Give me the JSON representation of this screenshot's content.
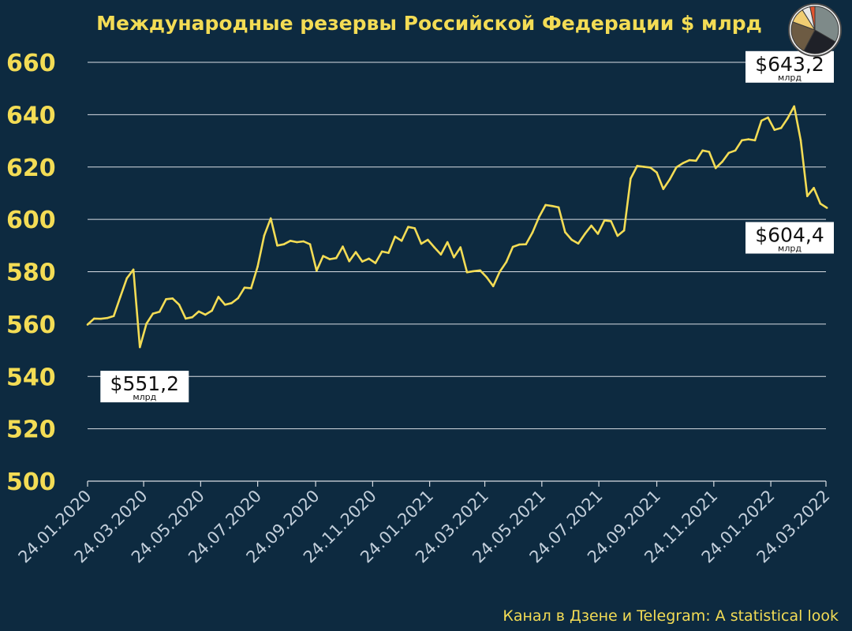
{
  "colors": {
    "background": "#0d2a40",
    "accent": "#f3dc55",
    "grid": "#d9dee4",
    "x_tick_text": "#c3cfdb",
    "label_box": "#ffffff"
  },
  "logo": {
    "icon": "pie-chart-logo-icon"
  },
  "footer": {
    "text": "Канал в Дзене и Telegram: A statistical look"
  },
  "chart_data": {
    "type": "line",
    "title": "Международные резервы Российской Федерации $ млрд",
    "xlabel": "",
    "ylabel": "",
    "ylim": [
      500,
      660
    ],
    "y_ticks": [
      500,
      520,
      540,
      560,
      580,
      600,
      620,
      640,
      660
    ],
    "grid": true,
    "x_range": [
      "24.01.2020",
      "24.03.2022"
    ],
    "x_tick_labels": [
      "24.01.2020",
      "24.03.2020",
      "24.05.2020",
      "24.07.2020",
      "24.09.2020",
      "24.11.2020",
      "24.01.2021",
      "24.03.2021",
      "24.05.2021",
      "24.07.2021",
      "24.09.2021",
      "24.11.2021",
      "24.01.2022",
      "24.03.2022"
    ],
    "series": [
      {
        "values": [
          [
            "24.01.2020",
            559.8
          ],
          [
            "31.01.2020",
            562.1
          ],
          [
            "07.02.2020",
            562.0
          ],
          [
            "14.02.2020",
            562.3
          ],
          [
            "21.02.2020",
            563.1
          ],
          [
            "28.02.2020",
            570.4
          ],
          [
            "06.03.2020",
            577.5
          ],
          [
            "13.03.2020",
            580.8
          ],
          [
            "20.03.2020",
            551.2
          ],
          [
            "27.03.2020",
            560.1
          ],
          [
            "03.04.2020",
            564.0
          ],
          [
            "10.04.2020",
            564.7
          ],
          [
            "17.04.2020",
            569.5
          ],
          [
            "24.04.2020",
            569.8
          ],
          [
            "01.05.2020",
            567.4
          ],
          [
            "08.05.2020",
            562.1
          ],
          [
            "15.05.2020",
            562.6
          ],
          [
            "22.05.2020",
            564.8
          ],
          [
            "29.05.2020",
            563.6
          ],
          [
            "05.06.2020",
            565.1
          ],
          [
            "12.06.2020",
            570.4
          ],
          [
            "19.06.2020",
            567.4
          ],
          [
            "26.06.2020",
            568.0
          ],
          [
            "03.07.2020",
            569.9
          ],
          [
            "10.07.2020",
            573.9
          ],
          [
            "17.07.2020",
            573.7
          ],
          [
            "24.07.2020",
            582.0
          ],
          [
            "31.07.2020",
            593.8
          ],
          [
            "07.08.2020",
            600.4
          ],
          [
            "14.08.2020",
            590.0
          ],
          [
            "21.08.2020",
            590.5
          ],
          [
            "28.08.2020",
            591.8
          ],
          [
            "04.09.2020",
            591.3
          ],
          [
            "11.09.2020",
            591.6
          ],
          [
            "18.09.2020",
            590.5
          ],
          [
            "25.09.2020",
            580.4
          ],
          [
            "02.10.2020",
            586.0
          ],
          [
            "09.10.2020",
            584.8
          ],
          [
            "16.10.2020",
            585.2
          ],
          [
            "23.10.2020",
            589.6
          ],
          [
            "30.10.2020",
            584.0
          ],
          [
            "06.11.2020",
            587.5
          ],
          [
            "13.11.2020",
            583.9
          ],
          [
            "20.11.2020",
            585.0
          ],
          [
            "27.11.2020",
            583.3
          ],
          [
            "04.12.2020",
            587.7
          ],
          [
            "11.12.2020",
            587.2
          ],
          [
            "18.12.2020",
            593.4
          ],
          [
            "25.12.2020",
            591.8
          ],
          [
            "01.01.2021",
            597.1
          ],
          [
            "08.01.2021",
            596.6
          ],
          [
            "15.01.2021",
            590.7
          ],
          [
            "22.01.2021",
            592.2
          ],
          [
            "29.01.2021",
            589.3
          ],
          [
            "05.02.2021",
            586.6
          ],
          [
            "12.02.2021",
            591.3
          ],
          [
            "19.02.2021",
            585.5
          ],
          [
            "26.02.2021",
            589.3
          ],
          [
            "05.03.2021",
            579.8
          ],
          [
            "12.03.2021",
            580.2
          ],
          [
            "19.03.2021",
            580.5
          ],
          [
            "26.03.2021",
            577.9
          ],
          [
            "02.04.2021",
            574.5
          ],
          [
            "09.04.2021",
            580.0
          ],
          [
            "16.04.2021",
            583.7
          ],
          [
            "23.04.2021",
            589.5
          ],
          [
            "30.04.2021",
            590.4
          ],
          [
            "07.05.2021",
            590.5
          ],
          [
            "14.05.2021",
            595.0
          ],
          [
            "21.05.2021",
            600.9
          ],
          [
            "28.05.2021",
            605.5
          ],
          [
            "04.06.2021",
            605.1
          ],
          [
            "11.06.2021",
            604.6
          ],
          [
            "18.06.2021",
            595.1
          ],
          [
            "25.06.2021",
            592.2
          ],
          [
            "02.07.2021",
            590.8
          ],
          [
            "09.07.2021",
            594.4
          ],
          [
            "16.07.2021",
            597.6
          ],
          [
            "23.07.2021",
            594.5
          ],
          [
            "30.07.2021",
            599.6
          ],
          [
            "06.08.2021",
            599.3
          ],
          [
            "13.08.2021",
            593.7
          ],
          [
            "20.08.2021",
            595.8
          ],
          [
            "27.08.2021",
            615.6
          ],
          [
            "03.09.2021",
            620.4
          ],
          [
            "10.09.2021",
            620.1
          ],
          [
            "17.09.2021",
            619.8
          ],
          [
            "24.09.2021",
            617.9
          ],
          [
            "01.10.2021",
            611.6
          ],
          [
            "08.10.2021",
            615.3
          ],
          [
            "15.10.2021",
            619.9
          ],
          [
            "22.10.2021",
            621.5
          ],
          [
            "29.10.2021",
            622.6
          ],
          [
            "05.11.2021",
            622.4
          ],
          [
            "12.11.2021",
            626.3
          ],
          [
            "19.11.2021",
            625.8
          ],
          [
            "26.11.2021",
            619.6
          ],
          [
            "03.12.2021",
            622.0
          ],
          [
            "10.12.2021",
            625.4
          ],
          [
            "17.12.2021",
            626.3
          ],
          [
            "24.12.2021",
            630.2
          ],
          [
            "31.12.2021",
            630.6
          ],
          [
            "07.01.2022",
            630.2
          ],
          [
            "14.01.2022",
            637.7
          ],
          [
            "21.01.2022",
            638.9
          ],
          [
            "28.01.2022",
            634.2
          ],
          [
            "04.02.2022",
            634.9
          ],
          [
            "11.02.2022",
            638.6
          ],
          [
            "18.02.2022",
            643.2
          ],
          [
            "25.02.2022",
            630.2
          ],
          [
            "04.03.2022",
            608.9
          ],
          [
            "11.03.2022",
            612.0
          ],
          [
            "18.03.2022",
            606.0
          ],
          [
            "25.03.2022",
            604.4
          ]
        ]
      }
    ],
    "annotations": [
      {
        "x": "20.03.2020",
        "y": 551.2,
        "text": "$551,2",
        "unit": "млрд"
      },
      {
        "x": "18.02.2022",
        "y": 643.2,
        "text": "$643,2",
        "unit": "млрд"
      },
      {
        "x": "25.03.2022",
        "y": 604.4,
        "text": "$604,4",
        "unit": "млрд"
      }
    ]
  }
}
